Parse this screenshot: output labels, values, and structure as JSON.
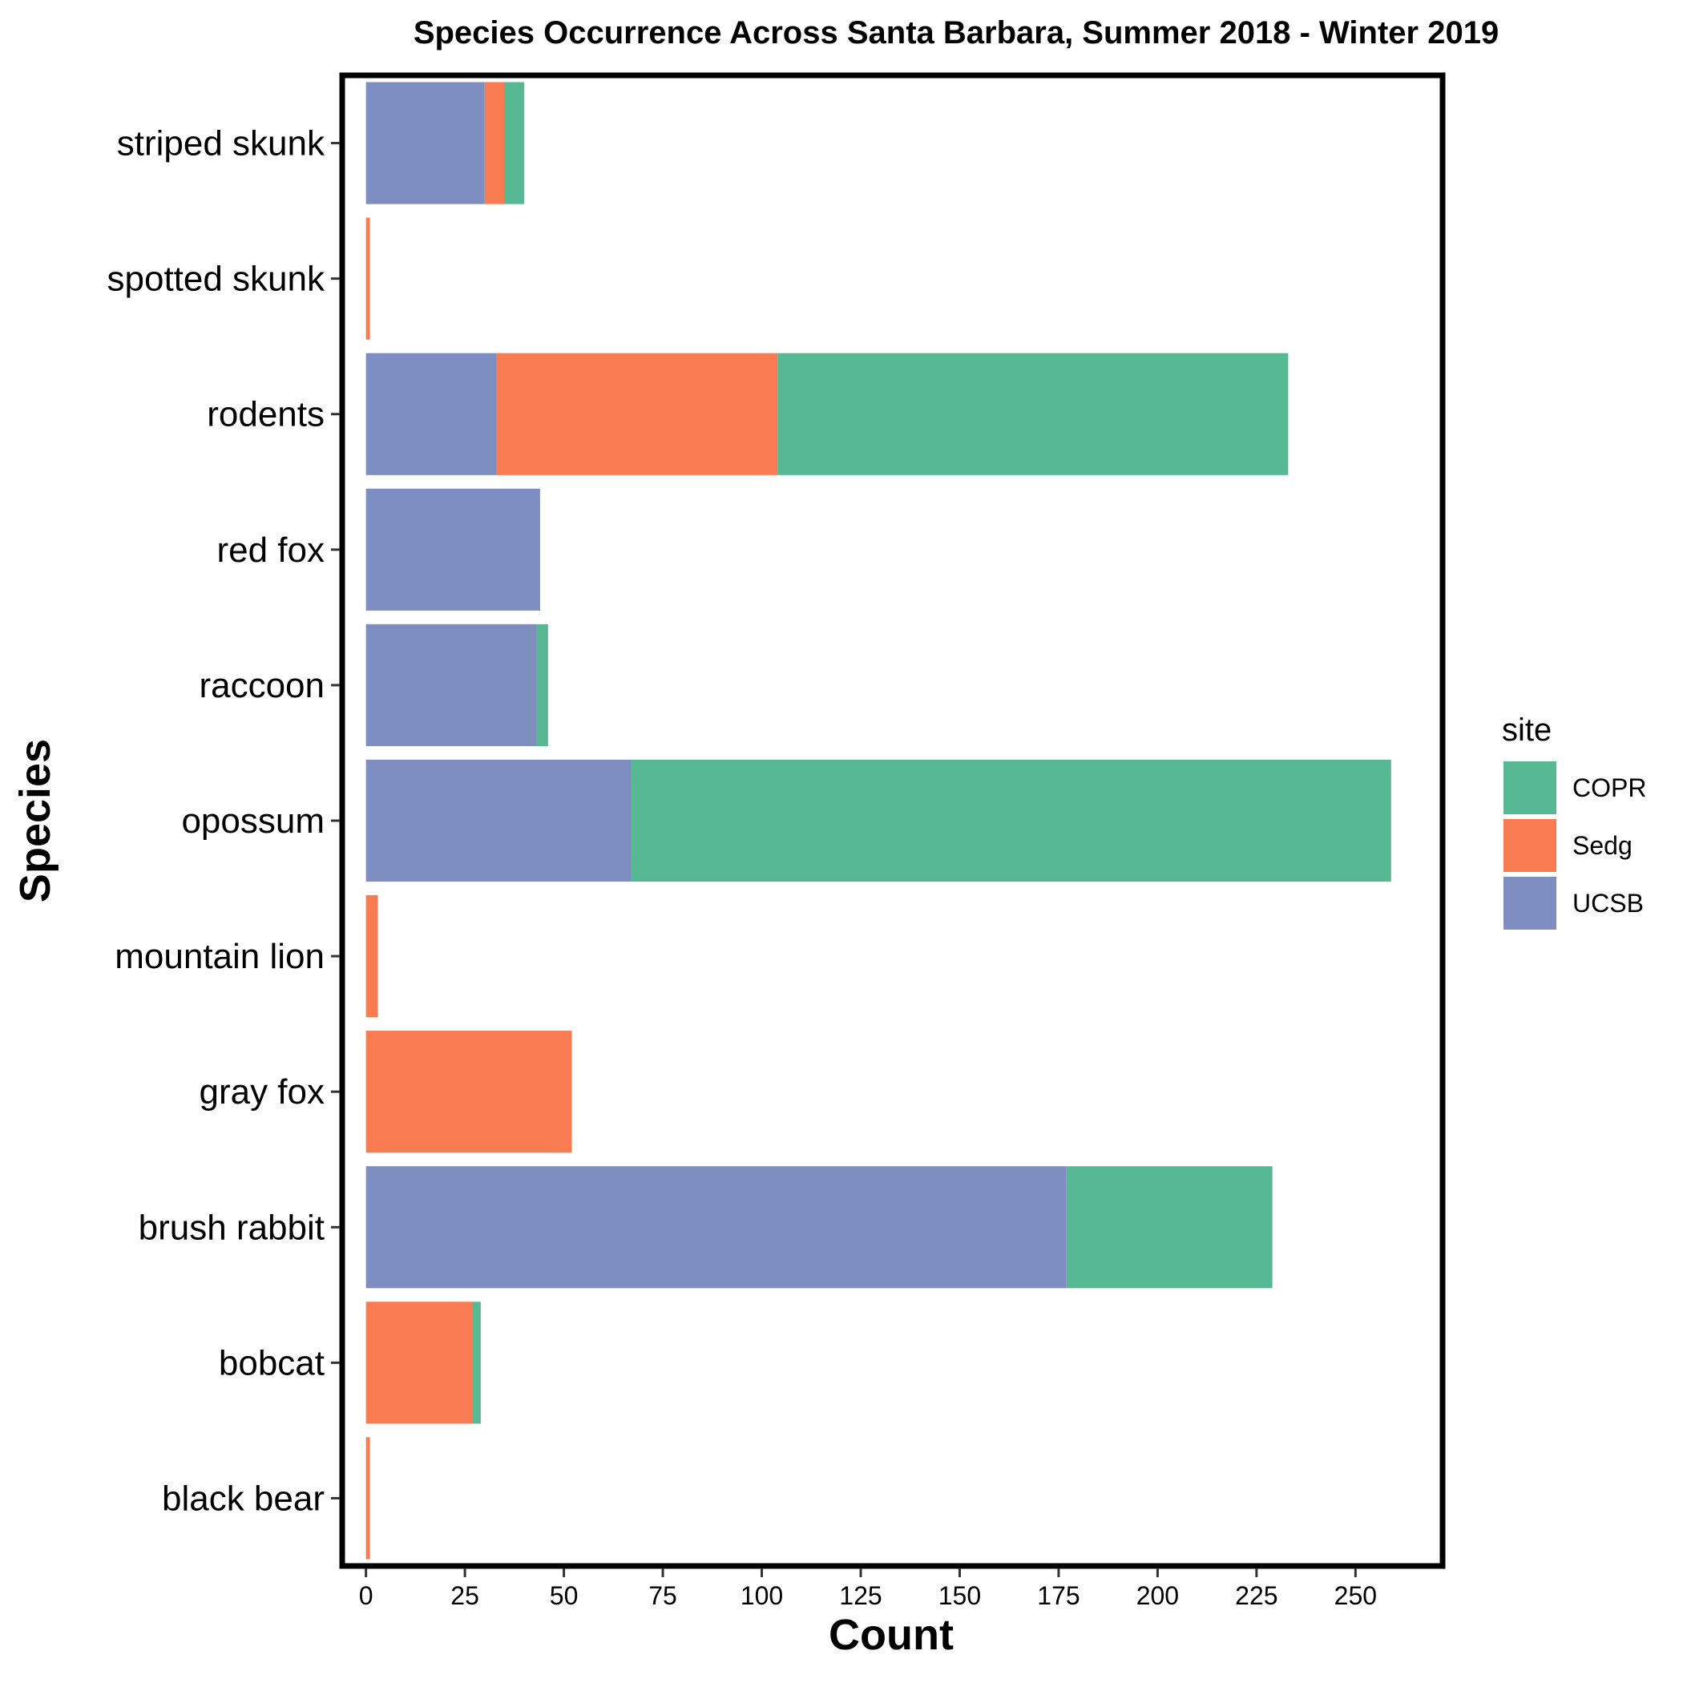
{
  "chart_data": {
    "type": "bar",
    "orientation": "horizontal",
    "stacked": true,
    "title": "Species Occurrence Across Santa Barbara, Summer 2018 - Winter 2019",
    "xlabel": "Count",
    "ylabel": "Species",
    "xlim": [
      -6,
      272
    ],
    "xticks": [
      0,
      25,
      50,
      75,
      100,
      125,
      150,
      175,
      200,
      225,
      250
    ],
    "grid": false,
    "legend": {
      "title": "site",
      "position": "right"
    },
    "categories": [
      "striped skunk",
      "spotted skunk",
      "rodents",
      "red fox",
      "raccoon",
      "opossum",
      "mountain lion",
      "gray fox",
      "brush rabbit",
      "bobcat",
      "black bear"
    ],
    "series": [
      {
        "name": "UCSB",
        "color": "#7E8EC0",
        "values": [
          30,
          0,
          33,
          44,
          43,
          67,
          0,
          0,
          177,
          0,
          0
        ]
      },
      {
        "name": "Sedg",
        "color": "#F97B52",
        "values": [
          5,
          1,
          71,
          0,
          0,
          0,
          3,
          52,
          0,
          27,
          1
        ]
      },
      {
        "name": "COPR",
        "color": "#57B993",
        "values": [
          5,
          0,
          129,
          0,
          3,
          192,
          0,
          0,
          52,
          2,
          0
        ]
      }
    ],
    "legend_order": [
      "COPR",
      "Sedg",
      "UCSB"
    ]
  }
}
